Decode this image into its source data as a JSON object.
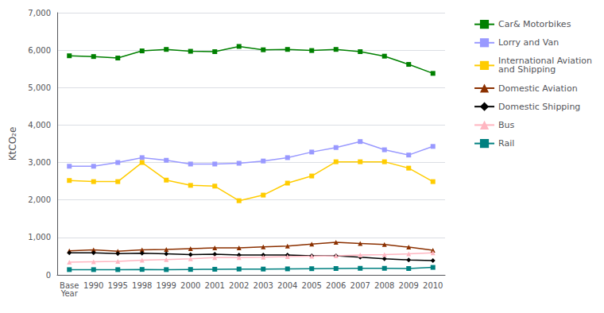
{
  "chart_data": {
    "type": "line",
    "categories": [
      "Base\nYear",
      "1990",
      "1995",
      "1998",
      "1999",
      "2000",
      "2001",
      "2002",
      "2003",
      "2004",
      "2005",
      "2006",
      "2007",
      "2008",
      "2009",
      "2010"
    ],
    "series": [
      {
        "name": "Car& Motorbikes",
        "color": "#008000",
        "marker": "square",
        "values": [
          5850,
          5830,
          5790,
          5980,
          6020,
          5970,
          5960,
          6100,
          6010,
          6020,
          5990,
          6020,
          5960,
          5840,
          5620,
          5380
        ]
      },
      {
        "name": "Lorry and Van",
        "color": "#9999FF",
        "marker": "square",
        "values": [
          2900,
          2900,
          3000,
          3130,
          3060,
          2960,
          2960,
          2980,
          3040,
          3130,
          3280,
          3400,
          3560,
          3340,
          3200,
          3430
        ]
      },
      {
        "name": "International Aviation\nand Shipping",
        "color": "#FFCC00",
        "marker": "square",
        "values": [
          2520,
          2490,
          2490,
          3000,
          2530,
          2390,
          2370,
          1980,
          2130,
          2450,
          2640,
          3020,
          3020,
          3020,
          2850,
          2490
        ]
      },
      {
        "name": "Domestic Aviation",
        "color": "#8B3000",
        "marker": "triangle",
        "values": [
          640,
          670,
          630,
          670,
          680,
          700,
          720,
          720,
          750,
          770,
          820,
          870,
          840,
          810,
          740,
          660
        ]
      },
      {
        "name": "Domestic Shipping",
        "color": "#000000",
        "marker": "diamond",
        "values": [
          590,
          590,
          570,
          580,
          560,
          540,
          550,
          530,
          530,
          530,
          510,
          510,
          470,
          430,
          400,
          380
        ]
      },
      {
        "name": "Bus",
        "color": "#FFB6C1",
        "marker": "triangle",
        "values": [
          340,
          350,
          360,
          390,
          410,
          430,
          460,
          460,
          470,
          490,
          500,
          510,
          530,
          540,
          560,
          590
        ]
      },
      {
        "name": "Rail",
        "color": "#008080",
        "marker": "square",
        "values": [
          140,
          140,
          140,
          145,
          140,
          145,
          150,
          155,
          155,
          160,
          165,
          170,
          175,
          175,
          170,
          200
        ]
      }
    ],
    "ylabel": "KtCO₂e",
    "ylim": [
      0,
      7000
    ],
    "yticks": [
      0,
      {
        "value": 1000,
        "label": "1,000"
      },
      {
        "value": 2000,
        "label": "2,000"
      },
      {
        "value": 3000,
        "label": "3,000"
      },
      {
        "value": 4000,
        "label": "4,000"
      },
      {
        "value": 5000,
        "label": "5,000"
      },
      {
        "value": 6000,
        "label": "6,000"
      },
      {
        "value": 7000,
        "label": "7,000"
      }
    ],
    "grid": true,
    "legend": "right"
  }
}
